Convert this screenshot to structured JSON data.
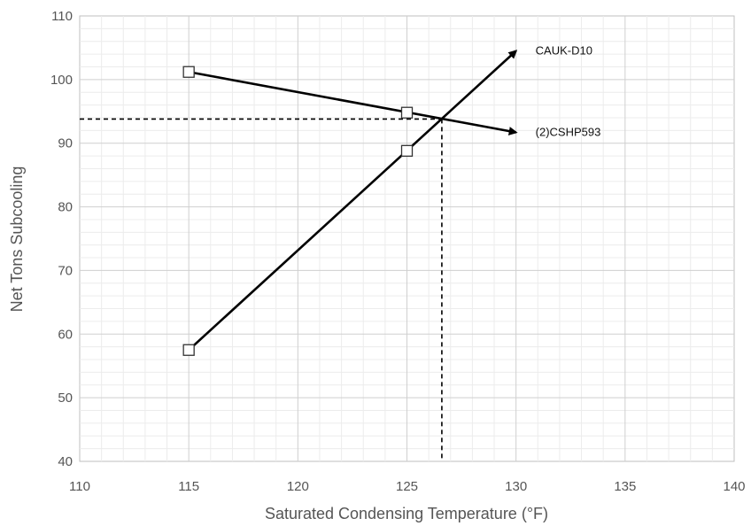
{
  "chart_data": {
    "type": "line",
    "title": "",
    "xlabel": "Saturated Condensing Temperature (°F)",
    "ylabel": "Net Tons Subcooling",
    "xlim": [
      110,
      140
    ],
    "ylim": [
      40,
      110
    ],
    "x_ticks": [
      110,
      115,
      120,
      125,
      130,
      135,
      140
    ],
    "y_ticks": [
      40,
      50,
      60,
      70,
      80,
      90,
      100,
      110
    ],
    "grid": true,
    "series": [
      {
        "name": "CAUK-D10",
        "points": [
          [
            115,
            57.5
          ],
          [
            125,
            88.8
          ]
        ],
        "arrow_to": [
          130,
          104.5
        ]
      },
      {
        "name": "(2)CSHP593",
        "points": [
          [
            115,
            101.2
          ],
          [
            125,
            94.8
          ]
        ],
        "arrow_to": [
          130,
          91.7
        ]
      }
    ],
    "intersection": {
      "x": 126.6,
      "y": 93.8
    }
  }
}
